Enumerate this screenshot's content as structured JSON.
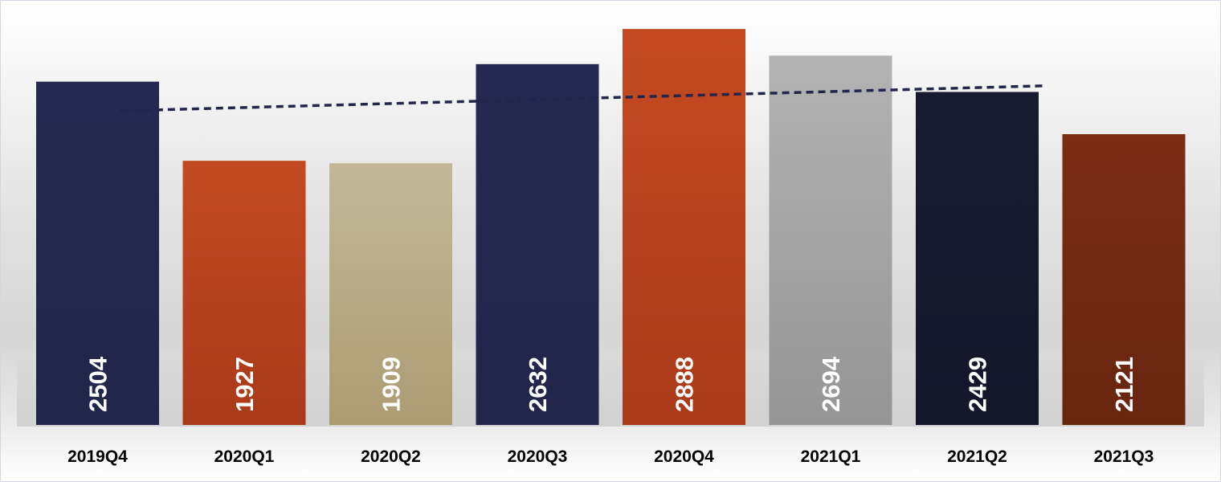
{
  "chart_data": {
    "type": "bar",
    "categories": [
      "2019Q4",
      "2020Q1",
      "2020Q2",
      "2020Q3",
      "2020Q4",
      "2021Q1",
      "2021Q2",
      "2021Q3"
    ],
    "values": [
      2504,
      1927,
      1909,
      2632,
      2888,
      2694,
      2429,
      2121
    ],
    "title": "",
    "xlabel": "",
    "ylabel": "",
    "ylim": [
      0,
      3000
    ],
    "grid": false,
    "legend": "none",
    "data_labels": "inside-bottom-vertical",
    "trendline": {
      "type": "linear",
      "style": "dashed",
      "color": "#23264b"
    },
    "bar_colors": [
      [
        "#252850",
        "#22264a"
      ],
      [
        "#c24a22",
        "#a93a19"
      ],
      [
        "#c2b899",
        "#ad9c73"
      ],
      [
        "#252850",
        "#22264a"
      ],
      [
        "#c54a22",
        "#a93a19"
      ],
      [
        "#b3b3b3",
        "#959595"
      ],
      [
        "#181a30",
        "#14162a"
      ],
      [
        "#7a2e14",
        "#682510"
      ]
    ]
  }
}
